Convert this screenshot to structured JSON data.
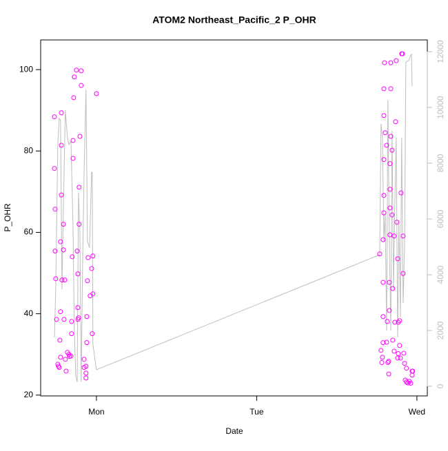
{
  "chart_data": {
    "type": "scatter",
    "title": "ATOM2 Northeast_Pacific_2 P_OHR",
    "x_label": "Date",
    "y_label": "P_OHR",
    "xlim": [
      -0.348,
      2.065
    ],
    "xticks": [
      {
        "value": 0,
        "label": "Mon"
      },
      {
        "value": 1,
        "label": "Tue"
      },
      {
        "value": 2,
        "label": "Wed"
      }
    ],
    "ylim": [
      19.8,
      107.3
    ],
    "yticks": [
      20,
      40,
      60,
      80,
      100
    ],
    "y2lim": [
      -346,
      12420
    ],
    "y2ticks": [
      0,
      2000,
      4000,
      6000,
      8000,
      10000,
      12000
    ],
    "series": [
      {
        "color": "#ff00ff",
        "x": [
          -0.262,
          -0.262,
          -0.258,
          -0.258,
          -0.254,
          -0.249,
          -0.241,
          -0.237,
          -0.232,
          -0.228,
          -0.224,
          -0.224,
          -0.219,
          -0.219,
          -0.219,
          -0.224,
          -0.215,
          -0.206,
          -0.206,
          -0.202,
          -0.198,
          -0.194,
          -0.189,
          -0.181,
          -0.172,
          -0.168,
          -0.159,
          -0.155,
          -0.151,
          -0.155,
          -0.146,
          -0.146,
          -0.142,
          -0.138,
          -0.125,
          -0.12,
          -0.116,
          -0.116,
          -0.112,
          -0.116,
          -0.108,
          -0.108,
          -0.103,
          -0.095,
          -0.095,
          -0.077,
          -0.077,
          -0.065,
          -0.065,
          -0.065,
          -0.06,
          -0.06,
          -0.056,
          -0.052,
          -0.039,
          -0.03,
          -0.026,
          -0.022,
          -0.022,
          0,
          1.768,
          1.776,
          1.781,
          1.785,
          1.789,
          1.789,
          1.789,
          1.794,
          1.794,
          1.794,
          1.794,
          1.794,
          1.798,
          1.789,
          1.802,
          1.811,
          1.811,
          1.815,
          1.819,
          1.824,
          1.824,
          1.828,
          1.828,
          1.832,
          1.832,
          1.832,
          1.832,
          1.837,
          1.837,
          1.837,
          1.845,
          1.845,
          1.849,
          1.849,
          1.858,
          1.858,
          1.862,
          1.867,
          1.871,
          1.875,
          1.88,
          1.88,
          1.884,
          1.884,
          1.892,
          1.892,
          1.897,
          1.901,
          1.905,
          1.914,
          1.914,
          1.918,
          1.923,
          1.927,
          1.935,
          1.935,
          1.944,
          1.953,
          1.961,
          1.97,
          1.97,
          1.974,
          1.91
        ],
        "values": [
          88.4,
          75.7,
          65.7,
          55.4,
          48.6,
          38.6,
          27.6,
          27.1,
          26.8,
          33.5,
          40.5,
          57.7,
          69.2,
          81.4,
          89.4,
          29.3,
          48.3,
          55.7,
          62,
          38.6,
          48.3,
          28.8,
          25.9,
          30.5,
          30,
          29.5,
          29.6,
          38.1,
          54,
          35.1,
          82.6,
          78.2,
          93.1,
          98.2,
          99.9,
          55.4,
          49.8,
          41.5,
          39,
          38.6,
          62,
          71.1,
          83.6,
          99.7,
          96.1,
          28.8,
          26.8,
          25.4,
          24.2,
          27.1,
          39.3,
          32.9,
          48.1,
          53.8,
          44.4,
          51.1,
          35.1,
          44.9,
          54.2,
          94.1,
          54.7,
          31,
          28,
          29.3,
          39.3,
          47.7,
          58.2,
          64.8,
          69.1,
          77.9,
          88.7,
          95.3,
          101.7,
          32.9,
          84.5,
          81.4,
          33,
          38.1,
          28,
          25.2,
          28.3,
          40.8,
          47.7,
          59.4,
          66,
          70.6,
          76.9,
          83.6,
          95.3,
          101.7,
          80.2,
          64.3,
          46.2,
          33.5,
          59.1,
          30.8,
          37.9,
          87.2,
          102.2,
          62.5,
          53.5,
          29.1,
          30.2,
          37.9,
          38.3,
          32.2,
          29.1,
          69.7,
          103.9,
          59.1,
          49.9,
          30.3,
          27.8,
          23.7,
          26.6,
          23.2,
          23,
          23.4,
          22.9,
          24.9,
          25.9,
          25.9,
          103.9
        ]
      },
      {
        "type": "line",
        "axis": "y2",
        "color": "#bebebe",
        "x": [
          -0.262,
          -0.254,
          -0.241,
          -0.232,
          -0.224,
          -0.215,
          -0.206,
          -0.194,
          -0.181,
          -0.172,
          -0.159,
          -0.146,
          -0.138,
          -0.129,
          -0.12,
          -0.112,
          -0.103,
          -0.095,
          -0.086,
          -0.077,
          -0.065,
          -0.056,
          -0.043,
          -0.03,
          -0.026,
          -0.022,
          0,
          1.768,
          1.776,
          1.785,
          1.794,
          1.802,
          1.811,
          1.819,
          1.828,
          1.837,
          1.845,
          1.854,
          1.862,
          1.871,
          1.88,
          1.888,
          1.897,
          1.905,
          1.914,
          1.923,
          1.931,
          1.948,
          1.966,
          1.97
        ],
        "values": [
          1753,
          3481,
          8667,
          9605,
          9531,
          3481,
          6444,
          9901,
          8914,
          8667,
          8790,
          5704,
          2000,
          395,
          148,
          6938,
          5457,
          148,
          4469,
          7679,
          10642,
          5210,
          4963,
          7679,
          7679,
          1506,
          593,
          4716,
          9407,
          8914,
          5210,
          6198,
          2000,
          10272,
          5210,
          2000,
          9160,
          3481,
          6444,
          8914,
          1753,
          5951,
          2494,
          8914,
          2988,
          4963,
          11630,
          11679,
          11926,
          10765
        ]
      }
    ]
  }
}
